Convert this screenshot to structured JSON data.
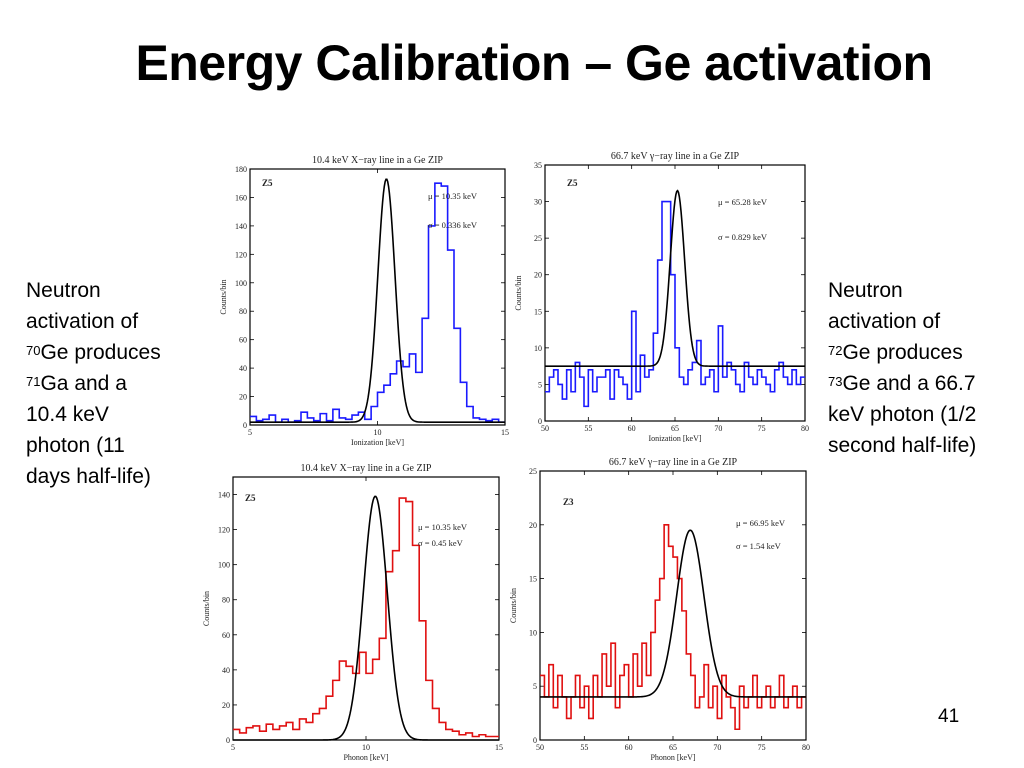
{
  "slide": {
    "title": "Energy Calibration – Ge activation",
    "page_number": "41"
  },
  "left_text": {
    "line1": "Neutron",
    "line2": "activation of",
    "sup1": "70",
    "line3": "Ge produces",
    "sup2": "71",
    "line4": "Ga and a",
    "line5": "10.4 keV",
    "line6": "photon (11",
    "line7": "days half-life)"
  },
  "right_text": {
    "line1": "Neutron",
    "line2": "activation of",
    "sup1": "72",
    "line3": "Ge produces",
    "sup2": "73",
    "line4": "Ge and a 66.7",
    "line5": "keV photon (1/2",
    "line6": "second half-life)"
  },
  "chart_data": [
    {
      "type": "line",
      "title": "10.4 keV X−ray line in a Ge ZIP",
      "detector": "Z5",
      "xlabel": "Ionization [keV]",
      "ylabel": "Counts/bin",
      "xlim": [
        5,
        15
      ],
      "ylim": [
        0,
        180
      ],
      "xticks": [
        5,
        10,
        15
      ],
      "yticks": [
        0,
        20,
        40,
        60,
        80,
        100,
        120,
        140,
        160,
        180
      ],
      "annotations": [
        "μ = 10.35 keV",
        "σ = 0.336 keV"
      ],
      "hist_color": "#1a1aff",
      "fit": {
        "mu": 10.35,
        "sigma": 0.336,
        "amplitude": 171,
        "background": 2
      },
      "bin_edges_start": 5,
      "bin_width": 0.25,
      "counts": [
        6,
        3,
        4,
        7,
        2,
        4,
        2,
        3,
        9,
        5,
        3,
        8,
        3,
        11,
        5,
        4,
        7,
        9,
        4,
        13,
        23,
        28,
        36,
        45,
        41,
        50,
        37,
        75,
        140,
        170,
        168,
        123,
        68,
        30,
        13,
        5,
        4,
        3,
        4,
        2
      ]
    },
    {
      "type": "line",
      "title": "66.7 keV γ−ray line in a Ge ZIP",
      "detector": "Z5",
      "xlabel": "Ionization [keV]",
      "ylabel": "Counts/bin",
      "xlim": [
        50,
        80
      ],
      "ylim": [
        0,
        35
      ],
      "xticks": [
        50,
        55,
        60,
        65,
        70,
        75,
        80
      ],
      "yticks": [
        0,
        5,
        10,
        15,
        20,
        25,
        30,
        35
      ],
      "annotations": [
        "μ = 65.28 keV",
        "σ = 0.829 keV"
      ],
      "hist_color": "#1a1aff",
      "fit": {
        "mu": 65.28,
        "sigma": 0.829,
        "amplitude": 24,
        "background": 7.5
      },
      "bin_edges_start": 50,
      "bin_width": 0.5,
      "counts": [
        4,
        6,
        7,
        5,
        3,
        7,
        4,
        8,
        6,
        2,
        7,
        4,
        6,
        6,
        7,
        3,
        7,
        6,
        5,
        3,
        15,
        4,
        9,
        6,
        7,
        12,
        22,
        30,
        30,
        20,
        10,
        6,
        5,
        7,
        8,
        11,
        5,
        6,
        7,
        4,
        13,
        6,
        8,
        7,
        5,
        4,
        8,
        6,
        5,
        7,
        6,
        5,
        4,
        7,
        8,
        6,
        5,
        7,
        5,
        6
      ]
    },
    {
      "type": "line",
      "title": "10.4 keV X−ray line in a Ge ZIP",
      "detector": "Z5",
      "xlabel": "Phonon [keV]",
      "ylabel": "Counts/bin",
      "xlim": [
        5,
        15
      ],
      "ylim": [
        0,
        150
      ],
      "xticks": [
        5,
        10,
        15
      ],
      "yticks": [
        0,
        20,
        40,
        60,
        80,
        100,
        120,
        140
      ],
      "annotations": [
        "μ = 10.35 keV",
        "σ = 0.45 keV"
      ],
      "hist_color": "#e01010",
      "fit": {
        "mu": 10.35,
        "sigma": 0.45,
        "amplitude": 139,
        "background": 0
      },
      "bin_edges_start": 5,
      "bin_width": 0.25,
      "counts": [
        6,
        4,
        7,
        8,
        5,
        9,
        6,
        8,
        10,
        6,
        12,
        10,
        15,
        18,
        25,
        34,
        45,
        42,
        38,
        50,
        38,
        46,
        58,
        96,
        108,
        138,
        136,
        111,
        68,
        34,
        18,
        10,
        6,
        5,
        3,
        4,
        2,
        3,
        2,
        2
      ]
    },
    {
      "type": "line",
      "title": "66.7 keV γ−ray line in a Ge ZIP",
      "detector": "Z3",
      "xlabel": "Phonon [keV]",
      "ylabel": "Counts/bin",
      "xlim": [
        50,
        80
      ],
      "ylim": [
        0,
        25
      ],
      "xticks": [
        50,
        55,
        60,
        65,
        70,
        75,
        80
      ],
      "yticks": [
        0,
        5,
        10,
        15,
        20,
        25
      ],
      "annotations": [
        "μ = 66.95 keV",
        "σ = 1.54 keV"
      ],
      "hist_color": "#e01010",
      "fit": {
        "mu": 66.95,
        "sigma": 1.54,
        "amplitude": 15.5,
        "background": 4
      },
      "bin_edges_start": 50,
      "bin_width": 0.5,
      "counts": [
        6,
        4,
        7,
        3,
        6,
        4,
        2,
        4,
        6,
        3,
        5,
        2,
        6,
        4,
        8,
        5,
        9,
        3,
        6,
        7,
        4,
        8,
        5,
        9,
        6,
        10,
        13,
        15,
        20,
        18,
        17,
        15,
        12,
        8,
        6,
        3,
        4,
        7,
        3,
        5,
        2,
        6,
        4,
        3,
        1,
        5,
        3,
        4,
        6,
        3,
        4,
        5,
        3,
        4,
        6,
        3,
        4,
        5,
        3,
        4
      ]
    }
  ]
}
